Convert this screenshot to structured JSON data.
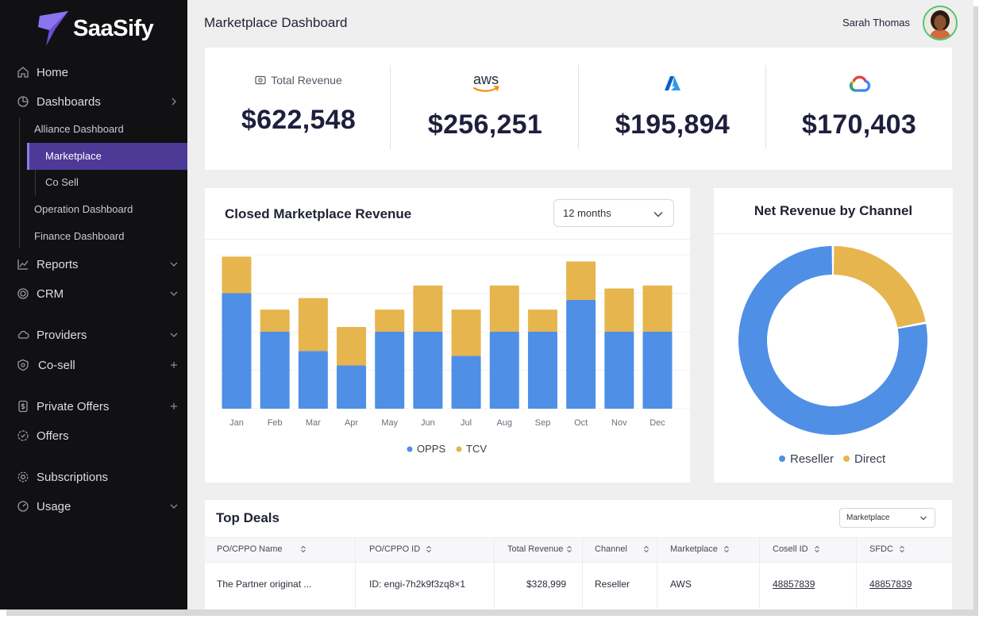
{
  "app": {
    "brand": "SaaSify"
  },
  "sidebar": {
    "items": [
      {
        "label": "Home",
        "icon": "home-icon"
      },
      {
        "label": "Dashboards",
        "icon": "pie-icon"
      },
      {
        "label": "Reports",
        "icon": "line-chart-icon"
      },
      {
        "label": "CRM",
        "icon": "crm-icon"
      },
      {
        "label": "Providers",
        "icon": "cloud-icon"
      },
      {
        "label": "Co-sell",
        "icon": "shield-icon"
      },
      {
        "label": "Private Offers",
        "icon": "dollar-icon"
      },
      {
        "label": "Offers",
        "icon": "badge-icon"
      },
      {
        "label": "Subscriptions",
        "icon": "gear-icon"
      },
      {
        "label": "Usage",
        "icon": "usage-icon"
      }
    ],
    "dashboards_sub": [
      "Alliance Dashboard",
      "Operation Dashboard",
      "Finance Dashboard"
    ],
    "alliance_sub": [
      "Marketplace",
      "Co Sell"
    ],
    "active_item": "Marketplace"
  },
  "header": {
    "title": "Marketplace Dashboard",
    "user_name": "Sarah Thomas"
  },
  "revenue": {
    "total_label": "Total Revenue",
    "total_value": "$622,548",
    "providers": [
      {
        "name": "AWS",
        "icon": "aws-logo",
        "value": "$256,251"
      },
      {
        "name": "Azure",
        "icon": "azure-logo",
        "value": "$195,894"
      },
      {
        "name": "Google Cloud",
        "icon": "gcp-logo",
        "value": "$170,403"
      }
    ],
    "aws_wordmark": "aws"
  },
  "bar_panel": {
    "title": "Closed Marketplace Revenue",
    "period": "12 months"
  },
  "donut_panel": {
    "title": "Net Revenue by Channel"
  },
  "colors": {
    "blue": "#4f8fe6",
    "gold": "#e6b54e",
    "accent": "#4c3a96"
  },
  "chart_data": [
    {
      "type": "bar",
      "stacked": true,
      "categories": [
        "Jan",
        "Feb",
        "Mar",
        "Apr",
        "May",
        "Jun",
        "Jul",
        "Aug",
        "Sep",
        "Oct",
        "Nov",
        "Dec"
      ],
      "series": [
        {
          "name": "OPPS",
          "color": "#4f8fe6",
          "values": [
            120,
            80,
            60,
            45,
            80,
            80,
            55,
            80,
            80,
            113,
            80,
            80
          ]
        },
        {
          "name": "TCV",
          "color": "#e6b54e",
          "values": [
            38,
            23,
            55,
            40,
            23,
            48,
            48,
            48,
            23,
            40,
            45,
            48
          ]
        }
      ],
      "grid": true,
      "legend": "bottom-center"
    },
    {
      "type": "pie",
      "donut": true,
      "labels": [
        "Reseller",
        "Direct"
      ],
      "values": [
        78,
        22
      ],
      "colors": [
        "#4f8fe6",
        "#e6b54e"
      ],
      "legend": "bottom-center"
    }
  ],
  "deals": {
    "title": "Top Deals",
    "filter": "Marketplace",
    "columns": [
      "PO/CPPO Name",
      "PO/CPPO ID",
      "Total Revenue",
      "Channel",
      "Marketplace",
      "Cosell ID",
      "SFDC"
    ],
    "rows": [
      [
        "The Partner originat ...",
        "ID: engi-7h2k9f3zq8×1",
        "$328,999",
        "Reseller",
        "AWS",
        "48857839",
        "48857839"
      ]
    ]
  }
}
